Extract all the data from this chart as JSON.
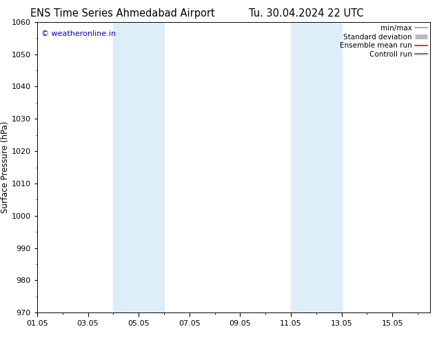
{
  "title_left": "ENS Time Series Ahmedabad Airport",
  "title_right": "Tu. 30.04.2024 22 UTC",
  "ylabel": "Surface Pressure (hPa)",
  "ylim": [
    970,
    1060
  ],
  "yticks": [
    970,
    980,
    990,
    1000,
    1010,
    1020,
    1030,
    1040,
    1050,
    1060
  ],
  "xlim_start": 0.0,
  "xlim_end": 15.5,
  "xtick_labels": [
    "01.05",
    "03.05",
    "05.05",
    "07.05",
    "09.05",
    "11.05",
    "13.05",
    "15.05"
  ],
  "xtick_positions": [
    0,
    2,
    4,
    6,
    8,
    10,
    12,
    14
  ],
  "shaded_regions": [
    {
      "xstart": 3.0,
      "xend": 5.0
    },
    {
      "xstart": 10.0,
      "xend": 12.0
    }
  ],
  "shaded_color": "#ddeef8",
  "watermark_text": "© weatheronline.in",
  "watermark_color": "#0000bb",
  "legend_items": [
    {
      "label": "min/max",
      "color": "#999999",
      "lw": 1.2,
      "linestyle": "-"
    },
    {
      "label": "Standard deviation",
      "color": "#bbbbbb",
      "lw": 5,
      "linestyle": "-"
    },
    {
      "label": "Ensemble mean run",
      "color": "#ff0000",
      "lw": 1.2,
      "linestyle": "-"
    },
    {
      "label": "Controll run",
      "color": "#008800",
      "lw": 1.2,
      "linestyle": "-"
    }
  ],
  "background_color": "#ffffff",
  "title_fontsize": 10.5,
  "axis_label_fontsize": 8.5,
  "tick_fontsize": 8,
  "watermark_fontsize": 8,
  "legend_fontsize": 7.5
}
